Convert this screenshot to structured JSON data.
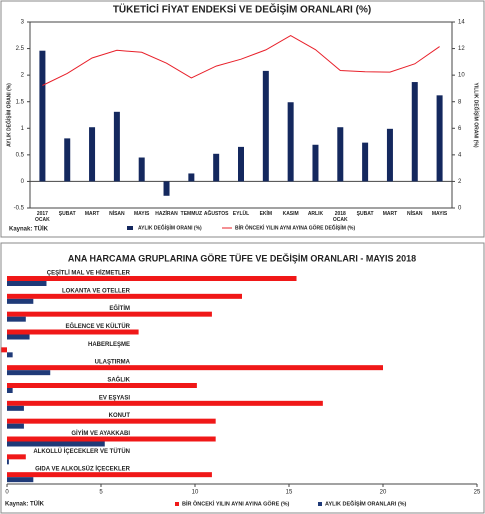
{
  "chart_data": [
    {
      "type": "bar-line",
      "title": "TÜKETİCİ FİYAT ENDEKSİ VE DEĞİŞİM ORANLARI (%)",
      "categories": [
        "2017 OCAK",
        "ŞUBAT",
        "MART",
        "NİSAN",
        "MAYIS",
        "HAZİRAN",
        "TEMMUZ",
        "AĞUSTOS",
        "EYLÜL",
        "EKİM",
        "KASIM",
        "ARLIK",
        "2018 OCAK",
        "ŞUBAT",
        "MART",
        "NİSAN",
        "MAYIS"
      ],
      "series": [
        {
          "name": "AYLIK DEĞİŞİM ORANI (%)",
          "color": "#14285e",
          "values": [
            2.46,
            0.81,
            1.02,
            1.31,
            0.45,
            -0.27,
            0.15,
            0.52,
            0.65,
            2.08,
            1.49,
            0.69,
            1.02,
            0.73,
            0.99,
            1.87,
            1.62
          ]
        },
        {
          "name": "BİR ÖNCEKİ YILIN AYNI AYINA GÖRE DEĞİŞİM (%)",
          "color": "#e8202a",
          "axis": "y2",
          "values": [
            9.22,
            10.13,
            11.29,
            11.87,
            11.72,
            10.9,
            9.79,
            10.68,
            11.2,
            11.9,
            12.98,
            11.92,
            10.35,
            10.26,
            10.23,
            10.85,
            12.15
          ]
        }
      ],
      "ylabel": "AYLIK DEĞİŞİM ORANI (%)",
      "y2label": "YILLIK DEĞİŞİM ORANI (%)",
      "ylim": [
        -0.5,
        3
      ],
      "yticks": [
        -0.5,
        0,
        0.5,
        1,
        1.5,
        2,
        2.5,
        3
      ],
      "y2lim": [
        0,
        14
      ],
      "y2ticks": [
        0,
        2,
        4,
        6,
        8,
        10,
        12,
        14
      ],
      "source": "Kaynak: TÜİK"
    },
    {
      "type": "hbar",
      "title": "ANA HARCAMA GRUPLARINA GÖRE TÜFE VE DEĞİŞİM ORANLARI  - MAYIS 2018",
      "categories": [
        "ÇEŞİTLİ MAL VE HİZMETLER",
        "LOKANTA VE OTELLER",
        "EĞİTİM",
        "EĞLENCE VE KÜLTÜR",
        "HABERLEŞME",
        "ULAŞTIRMA",
        "SAĞLIK",
        "EV EŞYASI",
        "KONUT",
        "GİYİM VE AYAKKABI",
        "ALKOLLÜ İÇECEKLER VE TÜTÜN",
        "GIDA VE ALKOLSÜZ İÇECEKLER"
      ],
      "series": [
        {
          "name": "BİR ÖNCEKİ YILIN AYNI AYINA GÖRE (%)",
          "color": "#f01818",
          "values": [
            15.4,
            12.5,
            10.9,
            7.0,
            -0.3,
            20.0,
            10.1,
            16.8,
            11.1,
            11.1,
            1.0,
            10.9
          ]
        },
        {
          "name": "AYLIK DEĞİŞİM ORANLARI (%)",
          "color": "#1f3a78",
          "values": [
            2.1,
            1.4,
            1.0,
            1.2,
            0.3,
            2.3,
            0.3,
            0.9,
            0.9,
            5.2,
            0.1,
            1.4
          ]
        }
      ],
      "xlim": [
        0,
        25
      ],
      "xticks": [
        0,
        5,
        10,
        15,
        20,
        25
      ],
      "source": "Kaynak: TÜİK"
    }
  ]
}
